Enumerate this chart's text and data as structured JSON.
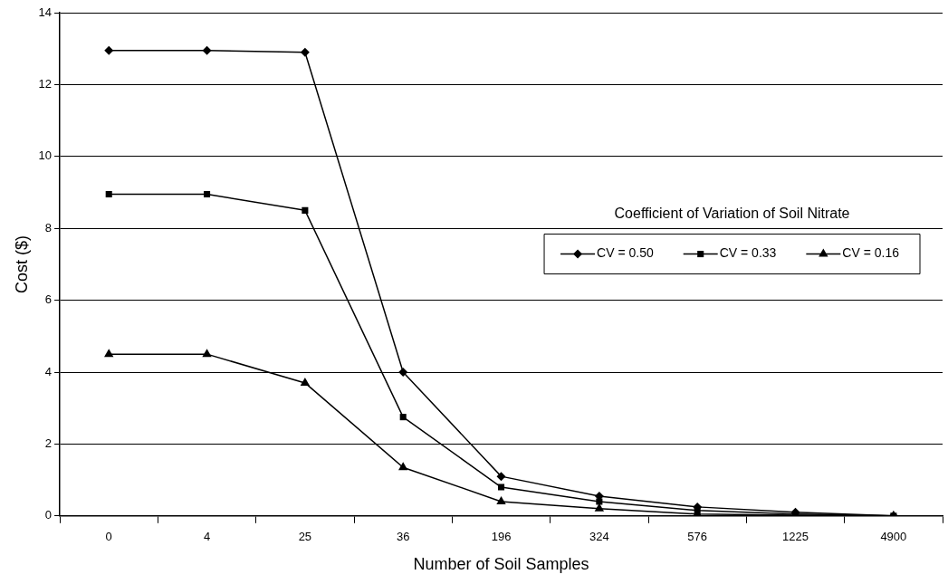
{
  "chart_data": {
    "type": "line",
    "xlabel": "Number of Soil Samples",
    "ylabel": "Cost ($)",
    "legend_title": "Coefficient of Variation of Soil Nitrate",
    "categories": [
      "0",
      "4",
      "25",
      "36",
      "196",
      "324",
      "576",
      "1225",
      "4900"
    ],
    "series": [
      {
        "name": "CV = 0.50",
        "color": "#000000",
        "marker": "diamond",
        "values": [
          12.95,
          12.95,
          12.9,
          4.0,
          1.1,
          0.55,
          0.25,
          0.1,
          0
        ]
      },
      {
        "name": "CV = 0.33",
        "color": "#000000",
        "marker": "square",
        "values": [
          8.95,
          8.95,
          8.5,
          2.75,
          0.8,
          0.4,
          0.15,
          0.05,
          0
        ]
      },
      {
        "name": "CV = 0.16",
        "color": "#000000",
        "marker": "triangle",
        "values": [
          4.5,
          4.5,
          3.7,
          1.35,
          0.4,
          0.2,
          0.05,
          0.02,
          0
        ]
      }
    ],
    "ylim": [
      0,
      14
    ],
    "yticks": [
      0,
      2,
      4,
      6,
      8,
      10,
      12,
      14
    ],
    "grid": "y",
    "legend": "right",
    "line_style": "solid"
  }
}
